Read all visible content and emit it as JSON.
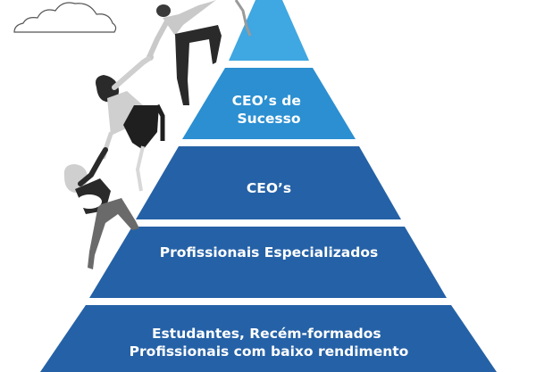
{
  "pyramid": {
    "levels": [
      {
        "lines": [
          ""
        ],
        "color": "#3fa7e1"
      },
      {
        "lines": [
          "CEO’s de",
          "Sucesso"
        ],
        "color": "#2b8fd1"
      },
      {
        "lines": [
          "CEO’s"
        ],
        "color": "#2561a6"
      },
      {
        "lines": [
          "Profissionais Especializados"
        ],
        "color": "#2561a6"
      },
      {
        "lines": [
          "Estudantes, Recém-formados",
          "Profissionais com baixo rendimento"
        ],
        "color": "#2561a6"
      }
    ]
  },
  "illustration": {
    "cloud_icon": "cloud-icon",
    "people": [
      "climbing-person-top",
      "climbing-person-middle",
      "climbing-person-bottom"
    ]
  }
}
